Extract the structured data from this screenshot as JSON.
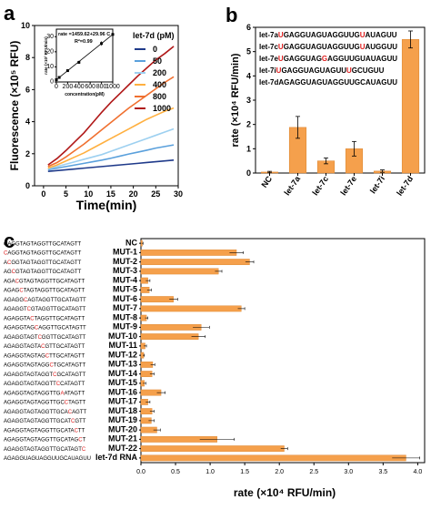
{
  "panels": [
    "a",
    "b",
    "c"
  ],
  "colors": {
    "bar": "#f5a04c",
    "bar_light": "#fbd3a6",
    "mutation": "#e02020",
    "axis": "#000000"
  },
  "chart_data": [
    {
      "type": "line",
      "panel": "a",
      "xlabel": "Time(min)",
      "ylabel": "Fluorescence (×10⁵ RFU)",
      "xlim": [
        -2,
        30
      ],
      "ylim": [
        0,
        10
      ],
      "xticks": [
        "0",
        "5",
        "10",
        "15",
        "20",
        "25",
        "30"
      ],
      "yticks": [
        "0",
        "2",
        "4",
        "6",
        "8",
        "10"
      ],
      "legend_title": "let-7d (pM)",
      "x": [
        1,
        3,
        5,
        7,
        9,
        11,
        13,
        15,
        17,
        19,
        21,
        23,
        25,
        27,
        29
      ],
      "series": [
        {
          "name": "0",
          "color": "#1f3a8a",
          "values": [
            0.9,
            0.95,
            1.0,
            1.05,
            1.1,
            1.15,
            1.2,
            1.25,
            1.3,
            1.35,
            1.4,
            1.45,
            1.5,
            1.55,
            1.6
          ]
        },
        {
          "name": "50",
          "color": "#5aa0dc",
          "values": [
            1.0,
            1.1,
            1.2,
            1.3,
            1.4,
            1.5,
            1.6,
            1.72,
            1.85,
            1.98,
            2.1,
            2.22,
            2.35,
            2.45,
            2.55
          ]
        },
        {
          "name": "200",
          "color": "#9dd0f0",
          "values": [
            1.05,
            1.2,
            1.35,
            1.5,
            1.65,
            1.8,
            1.95,
            2.15,
            2.35,
            2.55,
            2.75,
            2.95,
            3.15,
            3.35,
            3.55
          ]
        },
        {
          "name": "400",
          "color": "#ffb040",
          "values": [
            1.1,
            1.3,
            1.55,
            1.8,
            2.05,
            2.35,
            2.65,
            2.95,
            3.25,
            3.55,
            3.85,
            4.15,
            4.4,
            4.65,
            4.85
          ]
        },
        {
          "name": "800",
          "color": "#f07030",
          "values": [
            1.2,
            1.45,
            1.8,
            2.2,
            2.6,
            3.05,
            3.5,
            3.95,
            4.4,
            4.85,
            5.25,
            5.65,
            6.05,
            6.45,
            6.8
          ]
        },
        {
          "name": "1000",
          "color": "#b01818",
          "values": [
            1.3,
            1.7,
            2.2,
            2.75,
            3.3,
            3.95,
            4.6,
            5.2,
            5.75,
            6.3,
            6.85,
            7.35,
            7.85,
            8.25,
            8.7
          ]
        }
      ],
      "inset": {
        "equation": "rate =1459.62+29.96 C",
        "r2": "R²=0.99",
        "xlabel": "concentration(pM)",
        "ylabel": "rate (×10³ RFU/min)",
        "xlim": [
          0,
          1000
        ],
        "ylim": [
          0,
          35
        ],
        "xticks": [
          "0",
          "200",
          "400",
          "600",
          "800",
          "1000"
        ],
        "yticks": [
          "0",
          "10",
          "20",
          "30"
        ],
        "x": [
          0,
          50,
          200,
          400,
          800,
          1000
        ],
        "y": [
          1.5,
          3.0,
          7.5,
          13.0,
          25.5,
          31.5
        ],
        "err": [
          0.5,
          0.6,
          0.8,
          1.0,
          1.5,
          1.8
        ]
      }
    },
    {
      "type": "bar",
      "panel": "b",
      "ylabel": "rate (×10⁴ RFU/min)",
      "ylim": [
        0,
        6
      ],
      "yticks": [
        "0",
        "1",
        "2",
        "3",
        "4",
        "5",
        "6"
      ],
      "categories": [
        "NC",
        "let-7a",
        "let-7c",
        "let-7e",
        "let-7i",
        "let-7d"
      ],
      "values": [
        0.04,
        1.88,
        0.5,
        1.0,
        0.08,
        5.5
      ],
      "errors": [
        0.03,
        0.45,
        0.12,
        0.3,
        0.05,
        0.35
      ],
      "sequences": [
        {
          "name": "let-7a",
          "parts": [
            [
              "U",
              true
            ],
            [
              "GAGGUAGUAGGUUG",
              false
            ],
            [
              "U",
              true
            ],
            [
              "AUAGUU",
              false
            ]
          ]
        },
        {
          "name": "let-7c",
          "parts": [
            [
              "U",
              true
            ],
            [
              "GAGGUAGUAGGUUG",
              false
            ],
            [
              "U",
              true
            ],
            [
              "AUGGUU",
              false
            ]
          ]
        },
        {
          "name": "let-7e",
          "parts": [
            [
              "U",
              true
            ],
            [
              "GAGGUAG",
              false
            ],
            [
              "G",
              true
            ],
            [
              "AGGUUGUAUAGUU",
              false
            ]
          ]
        },
        {
          "name": "let-7i",
          "parts": [
            [
              "U",
              true
            ],
            [
              "GAGGUAGUAGUU",
              false
            ],
            [
              "U",
              true
            ],
            [
              "GCUGUU",
              false
            ]
          ]
        },
        {
          "name": "let-7d",
          "parts": [
            [
              "AGAGGUAGUAGGUUGCAUAGUU",
              false
            ]
          ]
        }
      ]
    },
    {
      "type": "bar",
      "orientation": "horizontal",
      "panel": "c",
      "xlabel": "rate (×10⁴ RFU/min)",
      "xlim": [
        0,
        4.1
      ],
      "xticks": [
        "0.0",
        "0.5",
        "1.0",
        "1.5",
        "2.0",
        "2.5",
        "3.0",
        "3.5",
        "4.0"
      ],
      "categories": [
        "NC",
        "MUT-1",
        "MUT-2",
        "MUT-3",
        "MUT-4",
        "MUT-5",
        "MUT-6",
        "MUT-7",
        "MUT-8",
        "MUT-9",
        "MUT-10",
        "MUT-11",
        "MUT-12",
        "MUT-13",
        "MUT-14",
        "MUT-15",
        "MUT-16",
        "MUT-17",
        "MUT-18",
        "MUT-19",
        "MUT-20",
        "MUT-21",
        "MUT-22",
        "let-7d RNA"
      ],
      "values": [
        0.02,
        1.38,
        1.57,
        1.12,
        0.1,
        0.12,
        0.47,
        1.45,
        0.08,
        0.87,
        0.83,
        0.06,
        0.04,
        0.17,
        0.16,
        0.05,
        0.29,
        0.1,
        0.16,
        0.15,
        0.23,
        1.1,
        2.07,
        3.83
      ],
      "errors": [
        0.01,
        0.1,
        0.06,
        0.05,
        0.03,
        0.03,
        0.06,
        0.05,
        0.02,
        0.12,
        0.1,
        0.02,
        0.01,
        0.03,
        0.03,
        0.02,
        0.06,
        0.03,
        0.03,
        0.04,
        0.05,
        0.25,
        0.05,
        0.2
      ],
      "sequences": [
        [
          [
            "CAGGTAGTAGGTTGCATAGTT",
            false
          ]
        ],
        [
          [
            "C",
            true
          ],
          [
            "AGGTAGTAGGTTGCATAGTT",
            false
          ]
        ],
        [
          [
            "A",
            false
          ],
          [
            "C",
            true
          ],
          [
            "GGTAGTAGGTTGCATAGTT",
            false
          ]
        ],
        [
          [
            "AG",
            false
          ],
          [
            "C",
            true
          ],
          [
            "GTAGTAGGTTGCATAGTT",
            false
          ]
        ],
        [
          [
            "AGA",
            false
          ],
          [
            "C",
            true
          ],
          [
            "GTAGTAGGTTGCATAGTT",
            false
          ]
        ],
        [
          [
            "AGAG",
            false
          ],
          [
            "C",
            true
          ],
          [
            "TAGTAGGTTGCATAGTT",
            false
          ]
        ],
        [
          [
            "AGAGG",
            false
          ],
          [
            "C",
            true
          ],
          [
            "AGTAGGTTGCATAGTT",
            false
          ]
        ],
        [
          [
            "AGAGGT",
            false
          ],
          [
            "C",
            true
          ],
          [
            "GTAGGTTGCATAGTT",
            false
          ]
        ],
        [
          [
            "AGAGGTA",
            false
          ],
          [
            "C",
            true
          ],
          [
            "TAGGTTGCATAGTT",
            false
          ]
        ],
        [
          [
            "AGAGGTAG",
            false
          ],
          [
            "C",
            true
          ],
          [
            "AGGTTGCATAGTT",
            false
          ]
        ],
        [
          [
            "AGAGGTAGT",
            false
          ],
          [
            "C",
            true
          ],
          [
            "GGTTGCATAGTT",
            false
          ]
        ],
        [
          [
            "AGAGGTAGTA",
            false
          ],
          [
            "C",
            true
          ],
          [
            "GTTGCATAGTT",
            false
          ]
        ],
        [
          [
            "AGAGGTAGTAG",
            false
          ],
          [
            "C",
            true
          ],
          [
            "TTGCATAGTT",
            false
          ]
        ],
        [
          [
            "AGAGGTAGTAGG",
            false
          ],
          [
            "C",
            true
          ],
          [
            "TGCATAGTT",
            false
          ]
        ],
        [
          [
            "AGAGGTAGTAGGT",
            false
          ],
          [
            "C",
            true
          ],
          [
            "GCATAGTT",
            false
          ]
        ],
        [
          [
            "AGAGGTAGTAGGTT",
            false
          ],
          [
            "C",
            true
          ],
          [
            "CATAGTT",
            false
          ]
        ],
        [
          [
            "AGAGGTAGTAGGTTG",
            false
          ],
          [
            "A",
            true
          ],
          [
            "ATAGTT",
            false
          ]
        ],
        [
          [
            "AGAGGTAGTAGGTTGC",
            false
          ],
          [
            "C",
            true
          ],
          [
            "TAGTT",
            false
          ]
        ],
        [
          [
            "AGAGGTAGTAGGTTGCA",
            false
          ],
          [
            "C",
            true
          ],
          [
            "AGTT",
            false
          ]
        ],
        [
          [
            "AGAGGTAGTAGGTTGCAT",
            false
          ],
          [
            "C",
            true
          ],
          [
            "GTT",
            false
          ]
        ],
        [
          [
            "AGAGGTAGTAGGTTGCATA",
            false
          ],
          [
            "C",
            true
          ],
          [
            "TT",
            false
          ]
        ],
        [
          [
            "AGAGGTAGTAGGTTGCATAG",
            false
          ],
          [
            "C",
            true
          ],
          [
            "T",
            false
          ]
        ],
        [
          [
            "AGAGGTAGTAGGTTGCATAGT",
            false
          ],
          [
            "C",
            true
          ]
        ],
        [
          [
            "AGAGGUAGUAGGUUGCAUAGUU",
            false
          ]
        ]
      ]
    }
  ]
}
